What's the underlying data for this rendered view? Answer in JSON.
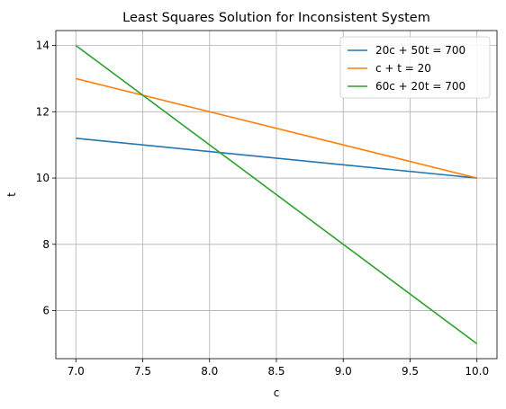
{
  "chart_data": {
    "type": "line",
    "title": "Least Squares Solution for Inconsistent System",
    "xlabel": "c",
    "ylabel": "t",
    "xlim": [
      6.85,
      10.15
    ],
    "ylim": [
      4.55,
      14.45
    ],
    "xticks": [
      7.0,
      7.5,
      8.0,
      8.5,
      9.0,
      9.5,
      10.0
    ],
    "xtick_labels": [
      "7.0",
      "7.5",
      "8.0",
      "8.5",
      "9.0",
      "9.5",
      "10.0"
    ],
    "yticks": [
      6,
      8,
      10,
      12,
      14
    ],
    "ytick_labels": [
      "6",
      "8",
      "10",
      "12",
      "14"
    ],
    "grid": true,
    "legend_position": "top-right",
    "series": [
      {
        "name": "20c + 50t = 700",
        "color": "#1f77b4",
        "x": [
          7.0,
          10.0
        ],
        "y": [
          11.2,
          10.0
        ]
      },
      {
        "name": "c + t = 20",
        "color": "#ff7f0e",
        "x": [
          7.0,
          10.0
        ],
        "y": [
          13.0,
          10.0
        ]
      },
      {
        "name": "60c + 20t = 700",
        "color": "#2ca02c",
        "x": [
          7.0,
          10.0
        ],
        "y": [
          14.0,
          5.0
        ]
      }
    ]
  }
}
